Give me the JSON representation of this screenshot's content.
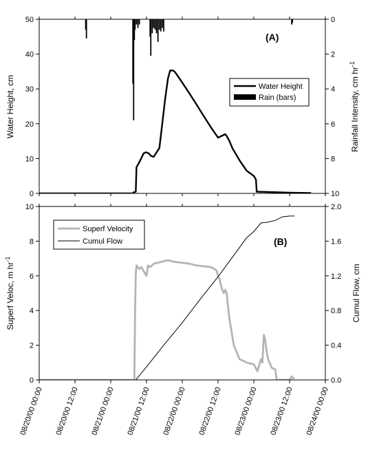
{
  "chart_data": [
    {
      "type": "line",
      "panel_label": "(A)",
      "ylabel": "Water Height, cm",
      "y2label": "Rainfall Intensity, cm hr",
      "y2label_sup": "-1",
      "ylim": [
        0,
        50
      ],
      "yticks": [
        "0",
        "10",
        "20",
        "30",
        "40",
        "50"
      ],
      "y2lim": [
        10,
        0
      ],
      "y2ticks": [
        "0",
        "2",
        "4",
        "6",
        "8",
        "10"
      ],
      "legend": {
        "placement": "right-center",
        "entries": [
          "Water Height",
          "Rain (bars)"
        ]
      },
      "series": [
        {
          "name": "Water Height",
          "x": [
            0,
            1.31,
            1.32,
            1.35,
            1.36,
            1.4,
            1.46,
            1.49,
            1.53,
            1.56,
            1.6,
            1.68,
            1.72,
            1.76,
            1.8,
            1.83,
            1.87,
            1.89,
            1.92,
            2.0,
            2.1,
            2.2,
            2.3,
            2.4,
            2.5,
            2.6,
            2.62,
            2.66,
            2.7,
            2.8,
            2.9,
            3.0,
            3.03,
            3.04,
            3.2,
            3.5,
            3.8
          ],
          "y": [
            0,
            0,
            0.3,
            0.5,
            7.5,
            9,
            11.5,
            11.8,
            11.5,
            10.8,
            10.5,
            13,
            20,
            27,
            33,
            35.3,
            35.3,
            35,
            34.2,
            31.8,
            28.7,
            25.5,
            22.2,
            19,
            16,
            17,
            16.5,
            15,
            13,
            9.5,
            6.5,
            5,
            4,
            0.5,
            0.4,
            0.2,
            0.1
          ]
        },
        {
          "name": "Rain (bars)",
          "bars": [
            {
              "x": 0.65,
              "depth": 0.6
            },
            {
              "x": 0.66,
              "depth": 1.1
            },
            {
              "x": 1.31,
              "depth": 3.7
            },
            {
              "x": 1.32,
              "depth": 5.8
            },
            {
              "x": 1.33,
              "depth": 1.2
            },
            {
              "x": 1.34,
              "depth": 0.6
            },
            {
              "x": 1.36,
              "depth": 0.3
            },
            {
              "x": 1.38,
              "depth": 0.5
            },
            {
              "x": 1.4,
              "depth": 0.3
            },
            {
              "x": 1.55,
              "depth": 1.0
            },
            {
              "x": 1.56,
              "depth": 2.1
            },
            {
              "x": 1.58,
              "depth": 0.8
            },
            {
              "x": 1.6,
              "depth": 0.5
            },
            {
              "x": 1.62,
              "depth": 0.6
            },
            {
              "x": 1.64,
              "depth": 0.8
            },
            {
              "x": 1.66,
              "depth": 1.3
            },
            {
              "x": 1.68,
              "depth": 0.6
            },
            {
              "x": 1.7,
              "depth": 0.7
            },
            {
              "x": 1.72,
              "depth": 0.5
            },
            {
              "x": 1.74,
              "depth": 0.7
            },
            {
              "x": 3.53,
              "depth": 0.3
            },
            {
              "x": 3.54,
              "depth": 0.2
            }
          ]
        }
      ]
    },
    {
      "type": "line",
      "panel_label": "(B)",
      "ylabel": "Superf Veloc, m hr",
      "ylabel_sup": "-1",
      "y2label": "Cumul Flow, cm",
      "ylim": [
        0,
        10
      ],
      "yticks": [
        "0",
        "2",
        "4",
        "6",
        "8",
        "10"
      ],
      "y2lim": [
        0,
        2.0
      ],
      "y2ticks": [
        "0.0",
        "0.4",
        "0.8",
        "1.2",
        "1.6",
        "2.0"
      ],
      "xlim": [
        0,
        4
      ],
      "xticks": [
        "08/20/00 00:00",
        "08/20/00 12:00",
        "08/21/00 00:00",
        "08/21/00 12:00",
        "08/22/00 00:00",
        "08/22/00 12:00",
        "08/23/00 00:00",
        "08/23/00 12:00",
        "08/24/00 00:00"
      ],
      "legend": {
        "placement": "top-left",
        "entries": [
          "Superf Velocity",
          "Cumul Flow"
        ]
      },
      "series": [
        {
          "name": "Superf Velocity",
          "x": [
            0,
            1.33,
            1.34,
            1.35,
            1.36,
            1.38,
            1.4,
            1.43,
            1.47,
            1.5,
            1.52,
            1.55,
            1.6,
            1.7,
            1.8,
            1.9,
            2.0,
            2.1,
            2.2,
            2.3,
            2.4,
            2.45,
            2.48,
            2.5,
            2.52,
            2.55,
            2.58,
            2.6,
            2.62,
            2.64,
            2.66,
            2.68,
            2.72,
            2.8,
            2.9,
            3.0,
            3.05,
            3.1,
            3.12,
            3.14,
            3.16,
            3.18,
            3.2,
            3.22,
            3.25,
            3.3,
            3.32,
            3.34,
            3.4,
            3.5,
            3.53,
            3.55,
            3.57
          ],
          "y": [
            0,
            0,
            4,
            6.1,
            6.6,
            6.5,
            6.4,
            6.5,
            6.2,
            6.0,
            6.6,
            6.5,
            6.7,
            6.8,
            6.9,
            6.8,
            6.75,
            6.7,
            6.6,
            6.55,
            6.5,
            6.4,
            6.3,
            6.0,
            5.8,
            5.3,
            5.0,
            5.2,
            5.0,
            4.2,
            3.5,
            3.0,
            2.0,
            1.2,
            1.0,
            0.9,
            0.5,
            1.2,
            1.0,
            2.6,
            2.3,
            1.6,
            1.2,
            1.0,
            0.7,
            0.6,
            0,
            0,
            0,
            0,
            0.2,
            0.1,
            0.1
          ]
        },
        {
          "name": "Cumul Flow",
          "x": [
            0,
            1.35,
            1.5,
            1.75,
            2.0,
            2.25,
            2.5,
            2.75,
            2.9,
            3.0,
            3.1,
            3.2,
            3.3,
            3.4,
            3.5,
            3.55,
            3.57
          ],
          "y": [
            0,
            0,
            0.15,
            0.41,
            0.66,
            0.93,
            1.19,
            1.47,
            1.64,
            1.71,
            1.81,
            1.82,
            1.84,
            1.88,
            1.89,
            1.89,
            1.89
          ]
        }
      ]
    }
  ]
}
